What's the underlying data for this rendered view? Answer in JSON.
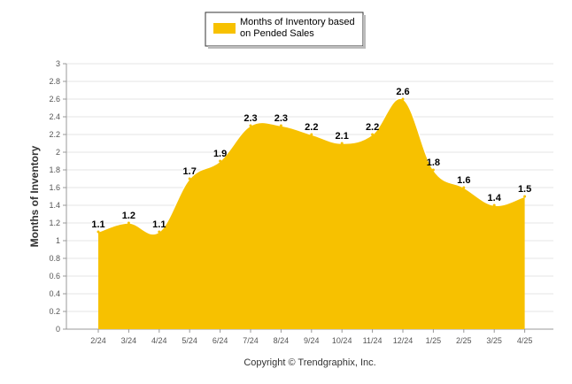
{
  "chart_data": {
    "type": "area",
    "categories": [
      "2/24",
      "3/24",
      "4/24",
      "5/24",
      "6/24",
      "7/24",
      "8/24",
      "9/24",
      "10/24",
      "11/24",
      "12/24",
      "1/25",
      "2/25",
      "3/25",
      "4/25"
    ],
    "series": [
      {
        "name": "Months of Inventory based on Pended Sales",
        "values": [
          1.1,
          1.2,
          1.1,
          1.7,
          1.9,
          2.3,
          2.3,
          2.2,
          2.1,
          2.2,
          2.6,
          1.8,
          1.6,
          1.4,
          1.5
        ],
        "color": "#F7C100"
      }
    ],
    "legend": {
      "line1": "Months of Inventory based",
      "line2": "on Pended Sales",
      "position": "top-center"
    },
    "ylabel": "Months of Inventory",
    "ylim": [
      0,
      3
    ],
    "yticks": [
      "0",
      "0.2",
      "0.4",
      "0.6",
      "0.8",
      "1",
      "1.2",
      "1.4",
      "1.6",
      "1.8",
      "2",
      "2.2",
      "2.4",
      "2.6",
      "2.8",
      "3"
    ],
    "grid": true,
    "credit": "Copyright © Trendgraphix, Inc."
  }
}
